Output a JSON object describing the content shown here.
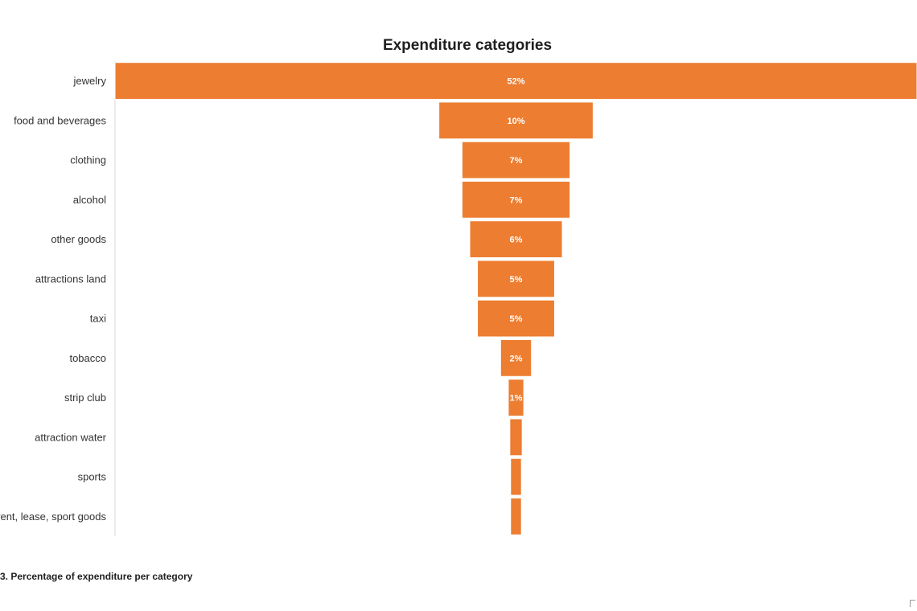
{
  "chart_data": {
    "type": "bar",
    "orientation": "horizontal-funnel",
    "title": "Expenditure categories",
    "categories": [
      "jewelry",
      "food and beverages",
      "clothing",
      "alcohol",
      "other goods",
      "attractions land",
      "taxi",
      "tobacco",
      "strip club",
      "attraction water",
      "sports",
      "rent, lease, sport goods"
    ],
    "values": [
      52,
      10,
      7,
      7,
      6,
      5,
      5,
      2,
      1,
      0.8,
      0.7,
      0.7
    ],
    "data_labels": [
      "52%",
      "10%",
      "7%",
      "7%",
      "6%",
      "5%",
      "5%",
      "2%",
      "1%",
      "",
      "",
      ""
    ],
    "xlabel": "",
    "ylabel": "",
    "xlim": [
      0,
      52
    ],
    "grid": false,
    "legend": "none",
    "bar_color": "#ED7D31",
    "bar_border_color": "#ffffff",
    "axis_color": "#d9d9d9"
  },
  "caption": "3. Percentage of expenditure per category"
}
